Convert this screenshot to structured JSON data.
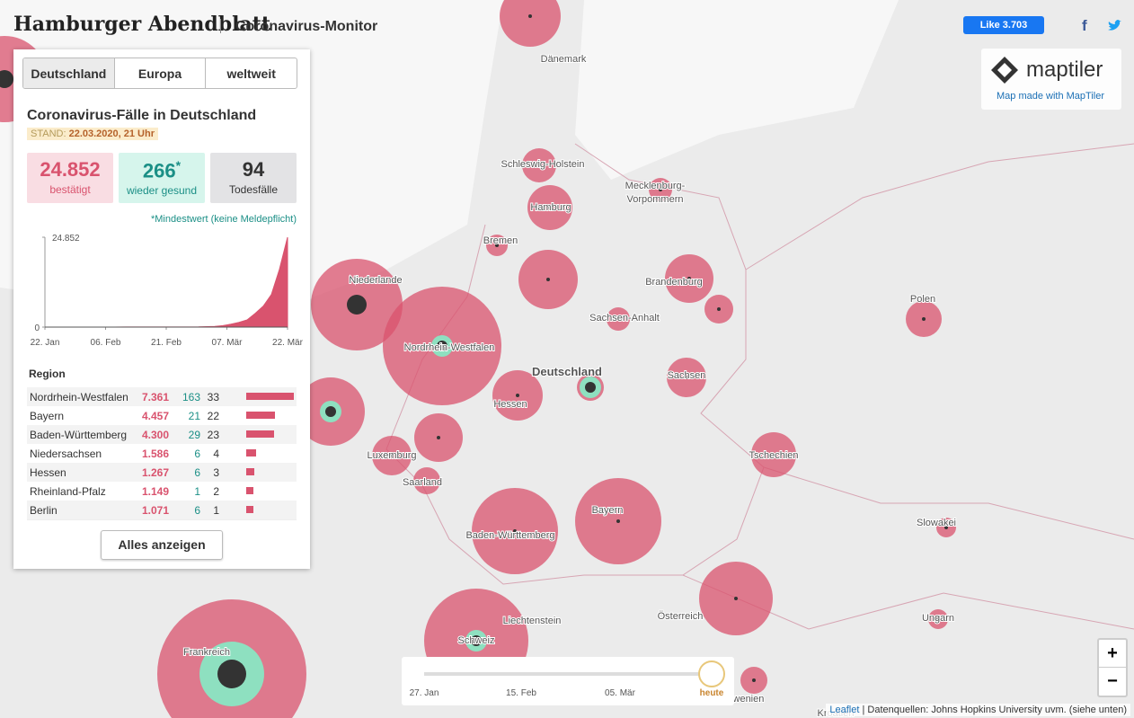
{
  "header": {
    "logo": "Hamburger Abendblatt",
    "title": "Coronavirus-Monitor",
    "like": "Like 3.703"
  },
  "maptiler": {
    "brand": "maptiler",
    "note": "Map made with MapTiler"
  },
  "tabs": [
    "Deutschland",
    "Europa",
    "weltweit"
  ],
  "panel": {
    "title": "Coronavirus-Fälle in Deutschland",
    "stand_label": "STAND:",
    "stand": "22.03.2020, 21 Uhr",
    "stats": [
      {
        "value": "24.852",
        "label": "bestätigt"
      },
      {
        "value": "266",
        "mark": "*",
        "label": "wieder gesund"
      },
      {
        "value": "94",
        "label": "Todesfälle"
      }
    ],
    "footnote": "*Mindestwert (keine Meldepflicht)",
    "chart": {
      "type": "area",
      "x": [
        0,
        10,
        20,
        30,
        35,
        38,
        40,
        42,
        44,
        46,
        48,
        50,
        52,
        54,
        56,
        58,
        60
      ],
      "values": [
        0,
        5,
        16,
        16,
        16,
        53,
        130,
        200,
        400,
        800,
        1300,
        2000,
        3800,
        5800,
        9000,
        16000,
        24852
      ],
      "color": "#d9536e",
      "xlim": [
        0,
        60
      ],
      "ylim": [
        0,
        24852
      ],
      "yticks": [
        0,
        {
          "value": 24852,
          "label": "24.852"
        }
      ],
      "xticks": [
        {
          "value": 0,
          "label": "22. Jan"
        },
        {
          "value": 15,
          "label": "06. Feb"
        },
        {
          "value": 30,
          "label": "21. Feb"
        },
        {
          "value": 45,
          "label": "07. Mär"
        },
        {
          "value": 60,
          "label": "22. Mär"
        }
      ]
    },
    "region_header": "Region",
    "rows": [
      {
        "name": "Nordrhein-Westfalen",
        "cases": {
          "value": 7361,
          "label": "7.361"
        },
        "recovered": 163,
        "deaths": 33
      },
      {
        "name": "Bayern",
        "cases": {
          "value": 4457,
          "label": "4.457"
        },
        "recovered": 21,
        "deaths": 22
      },
      {
        "name": "Baden-Württemberg",
        "cases": {
          "value": 4300,
          "label": "4.300"
        },
        "recovered": 29,
        "deaths": 23
      },
      {
        "name": "Niedersachsen",
        "cases": {
          "value": 1586,
          "label": "1.586"
        },
        "recovered": 6,
        "deaths": 4
      },
      {
        "name": "Hessen",
        "cases": {
          "value": 1267,
          "label": "1.267"
        },
        "recovered": 6,
        "deaths": 3
      },
      {
        "name": "Rheinland-Pfalz",
        "cases": {
          "value": 1149,
          "label": "1.149"
        },
        "recovered": 1,
        "deaths": 2
      },
      {
        "name": "Berlin",
        "cases": {
          "value": 1071,
          "label": "1.071"
        },
        "recovered": 6,
        "deaths": 1
      }
    ],
    "button": "Alles anzeigen"
  },
  "map_labels": [
    "Dänemark",
    "Schleswig-Holstein",
    "Mecklenburg-",
    "Vorpommern",
    "Hamburg",
    "Bremen",
    "Niederlande",
    "Brandenburg",
    "Sachsen-Anhalt",
    "Polen",
    "Nordrhein-Westfalen",
    "Deutschland",
    "Hessen",
    "Sachsen",
    "Luxemburg",
    "Saarland",
    "Tschechien",
    "Bayern",
    "Baden-Württemberg",
    "Slowakei",
    "Liechtenstein",
    "Österreich",
    "Ungarn",
    "Schweiz",
    "Frankreich",
    "Slowenien",
    "Kroatien"
  ],
  "timeline": {
    "labels": [
      "27. Jan",
      "15. Feb",
      "05. Mär",
      "heute"
    ]
  },
  "zoom": [
    "+",
    "−"
  ],
  "attribution": {
    "leaflet": "Leaflet",
    "text": "| Datenquellen: Johns Hopkins University uvm. (siehe unten)"
  }
}
